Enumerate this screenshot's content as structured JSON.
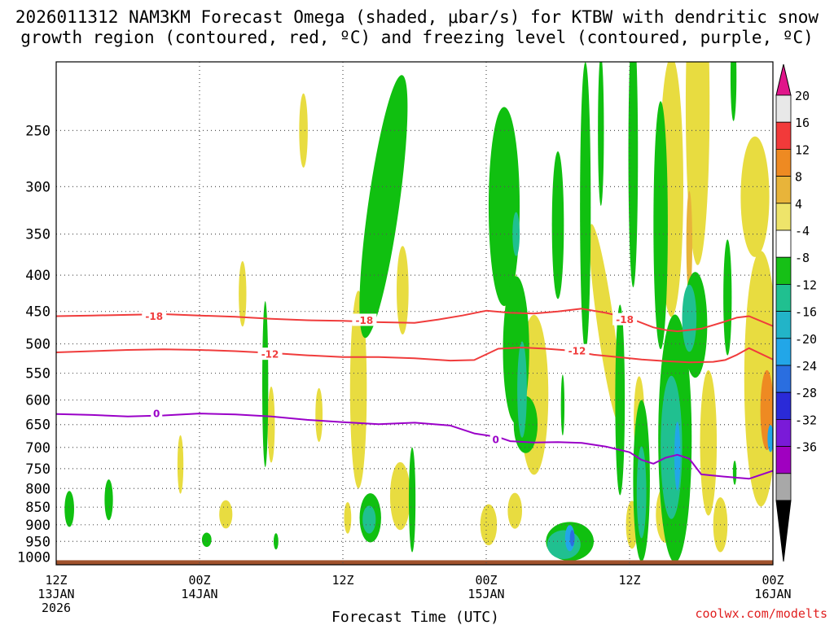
{
  "title_lines": [
    "2026011312 NAM3KM Forecast Omega (shaded, μbar/s) for KTBW with dendritic snow",
    "growth region (contoured, red, ºC) and freezing level (contoured, purple, ºC)"
  ],
  "source": "coolwx.com/modelts",
  "colors": {
    "red": "#f03c3c",
    "purple": "#9a00c8",
    "ground": "#a0522d",
    "dotgrid": "#555555",
    "source": "#e02020",
    "yellow": "#e8dc40",
    "orange": "#ee8a22",
    "green": "#10c010",
    "teal": "#20c090",
    "lightblue": "#22a6e8",
    "blue": "#2a6ee0"
  },
  "chart_data": {
    "type": "heatmap",
    "title": "2026011312 NAM3KM Forecast Omega (shaded, μbar/s) for KTBW with dendritic snow growth region (contoured, red, ºC) and freezing level (contoured, purple, ºC)",
    "xlabel": "Forecast Time (UTC)",
    "ylabel": "",
    "x_hours": [
      0,
      60
    ],
    "x_ticks": [
      {
        "h": 0,
        "lines": [
          "12Z",
          "13JAN",
          "2026"
        ]
      },
      {
        "h": 12,
        "lines": [
          "00Z",
          "14JAN"
        ]
      },
      {
        "h": 24,
        "lines": [
          "12Z"
        ]
      },
      {
        "h": 36,
        "lines": [
          "00Z",
          "15JAN"
        ]
      },
      {
        "h": 48,
        "lines": [
          "12Z"
        ]
      },
      {
        "h": 60,
        "lines": [
          "00Z",
          "16JAN"
        ]
      }
    ],
    "y_label_levels": [
      250,
      300,
      350,
      400,
      450,
      500,
      550,
      600,
      650,
      700,
      750,
      800,
      850,
      900,
      950,
      1000
    ],
    "y_grid_levels": [
      250,
      300,
      350,
      400,
      450,
      500,
      550,
      600,
      650,
      700,
      750,
      800,
      850,
      900,
      950
    ],
    "y_range_hpa": [
      1025,
      200
    ],
    "grid": "dotted",
    "colorbar": {
      "labels": [
        "20",
        "16",
        "12",
        "8",
        "4",
        "-4",
        "-8",
        "-12",
        "-16",
        "-20",
        "-24",
        "-28",
        "-32",
        "-36"
      ],
      "segments": [
        "#e8e8e8",
        "#f23a3a",
        "#ee8a22",
        "#e8b43a",
        "#eee46a",
        "#ffffff",
        "#16c016",
        "#20c090",
        "#22b4c8",
        "#22a6e8",
        "#2a6ee0",
        "#2a2ad8",
        "#7a1ad8",
        "#a000c0",
        "#a8a8a8"
      ],
      "top_arrow": "#e0158a",
      "bottom_arrow": "#000000"
    },
    "contours": [
      {
        "name": "-18",
        "color": "#f03c3c",
        "points": [
          [
            0,
            457
          ],
          [
            3,
            456
          ],
          [
            6,
            455
          ],
          [
            9,
            454
          ],
          [
            12,
            456
          ],
          [
            15,
            458
          ],
          [
            18,
            461
          ],
          [
            21,
            463
          ],
          [
            24,
            464
          ],
          [
            27,
            466
          ],
          [
            30,
            467
          ],
          [
            32,
            462
          ],
          [
            34,
            456
          ],
          [
            36,
            449
          ],
          [
            38,
            452
          ],
          [
            40,
            453
          ],
          [
            42,
            450
          ],
          [
            44,
            446
          ],
          [
            46,
            452
          ],
          [
            48,
            460
          ],
          [
            50,
            474
          ],
          [
            51,
            478
          ],
          [
            52,
            480
          ],
          [
            54,
            476
          ],
          [
            56,
            465
          ],
          [
            57,
            459
          ],
          [
            58,
            457
          ],
          [
            60,
            472
          ]
        ],
        "labels": [
          [
            8.2,
            457
          ],
          [
            25.8,
            463
          ],
          [
            47.6,
            462
          ]
        ]
      },
      {
        "name": "-12",
        "color": "#f03c3c",
        "points": [
          [
            0,
            514
          ],
          [
            3,
            512
          ],
          [
            6,
            510
          ],
          [
            9,
            509
          ],
          [
            12,
            510
          ],
          [
            15,
            512
          ],
          [
            18,
            515
          ],
          [
            21,
            519
          ],
          [
            24,
            522
          ],
          [
            27,
            522
          ],
          [
            30,
            524
          ],
          [
            33,
            528
          ],
          [
            35,
            527
          ],
          [
            37,
            508
          ],
          [
            39,
            506
          ],
          [
            41,
            508
          ],
          [
            43,
            511
          ],
          [
            45,
            518
          ],
          [
            47,
            522
          ],
          [
            49,
            526
          ],
          [
            51,
            529
          ],
          [
            53,
            531
          ],
          [
            55,
            530
          ],
          [
            56,
            527
          ],
          [
            57,
            518
          ],
          [
            58,
            507
          ],
          [
            60,
            526
          ]
        ],
        "labels": [
          [
            17.9,
            517
          ],
          [
            43.6,
            511
          ]
        ]
      },
      {
        "name": "0",
        "color": "#9a00c8",
        "points": [
          [
            0,
            628
          ],
          [
            3,
            630
          ],
          [
            6,
            633
          ],
          [
            9,
            631
          ],
          [
            12,
            627
          ],
          [
            15,
            629
          ],
          [
            18,
            633
          ],
          [
            21,
            640
          ],
          [
            24,
            645
          ],
          [
            27,
            649
          ],
          [
            30,
            646
          ],
          [
            33,
            652
          ],
          [
            35,
            669
          ],
          [
            37,
            677
          ],
          [
            38,
            686
          ],
          [
            40,
            689
          ],
          [
            42,
            688
          ],
          [
            44,
            690
          ],
          [
            46,
            698
          ],
          [
            48,
            711
          ],
          [
            49,
            729
          ],
          [
            50,
            738
          ],
          [
            51,
            724
          ],
          [
            52,
            717
          ],
          [
            53,
            726
          ],
          [
            54,
            764
          ],
          [
            56,
            770
          ],
          [
            58,
            775
          ],
          [
            60,
            755
          ]
        ],
        "labels": [
          [
            8.4,
            627
          ],
          [
            36.8,
            682
          ]
        ]
      }
    ],
    "shading": [
      {
        "value": 6,
        "x": 15.6,
        "p": 425,
        "rx": 0.32,
        "rp": 45,
        "rot": 0
      },
      {
        "value": 6,
        "x": 20.7,
        "p": 250,
        "rx": 0.36,
        "rp": 30,
        "rot": 0
      },
      {
        "value": 6,
        "x": 18.0,
        "p": 650,
        "rx": 0.3,
        "rp": 80,
        "rot": 0
      },
      {
        "value": 6,
        "x": 10.4,
        "p": 740,
        "rx": 0.25,
        "rp": 70,
        "rot": 0
      },
      {
        "value": 6,
        "x": 14.2,
        "p": 870,
        "rx": 0.55,
        "rp": 40,
        "rot": 0
      },
      {
        "value": 6,
        "x": 25.3,
        "p": 580,
        "rx": 0.7,
        "rp": 180,
        "rot": 0
      },
      {
        "value": 6,
        "x": 28.8,
        "p": 820,
        "rx": 0.85,
        "rp": 90,
        "rot": 0
      },
      {
        "value": 6,
        "x": 29.0,
        "p": 420,
        "rx": 0.5,
        "rp": 60,
        "rot": 0
      },
      {
        "value": 6,
        "x": 38.2,
        "p": 500,
        "rx": 0.7,
        "rp": 120,
        "rot": 0
      },
      {
        "value": 6,
        "x": 40.0,
        "p": 590,
        "rx": 1.2,
        "rp": 150,
        "rot": 0
      },
      {
        "value": 6,
        "x": 38.4,
        "p": 860,
        "rx": 0.6,
        "rp": 50,
        "rot": 0
      },
      {
        "value": 6,
        "x": 36.2,
        "p": 900,
        "rx": 0.7,
        "rp": 60,
        "rot": 0
      },
      {
        "value": 6,
        "x": 46.0,
        "p": 470,
        "rx": 0.7,
        "rp": 150,
        "rot": -8
      },
      {
        "value": 6,
        "x": 51.5,
        "p": 300,
        "rx": 1.0,
        "rp": 120,
        "rot": 0
      },
      {
        "value": 6,
        "x": 53.7,
        "p": 230,
        "rx": 1.0,
        "rp": 110,
        "rot": 0
      },
      {
        "value": 6,
        "x": 58.5,
        "p": 310,
        "rx": 1.2,
        "rp": 60,
        "rot": 0
      },
      {
        "value": 6,
        "x": 59.0,
        "p": 560,
        "rx": 1.4,
        "rp": 220,
        "rot": 0
      },
      {
        "value": 6,
        "x": 54.6,
        "p": 690,
        "rx": 0.7,
        "rp": 160,
        "rot": 0
      },
      {
        "value": 6,
        "x": 55.6,
        "p": 900,
        "rx": 0.6,
        "rp": 80,
        "rot": 0
      },
      {
        "value": 6,
        "x": 51.0,
        "p": 870,
        "rx": 0.8,
        "rp": 80,
        "rot": 0
      },
      {
        "value": 6,
        "x": 48.8,
        "p": 640,
        "rx": 0.45,
        "rp": 90,
        "rot": 0
      },
      {
        "value": 6,
        "x": 48.2,
        "p": 900,
        "rx": 0.5,
        "rp": 70,
        "rot": 0
      },
      {
        "value": 6,
        "x": 22.0,
        "p": 630,
        "rx": 0.3,
        "rp": 55,
        "rot": 0
      },
      {
        "value": 6,
        "x": 24.4,
        "p": 880,
        "rx": 0.3,
        "rp": 45,
        "rot": 0
      },
      {
        "value": 14,
        "x": 59.5,
        "p": 620,
        "rx": 0.55,
        "rp": 80,
        "rot": 0
      },
      {
        "value": 10,
        "x": 53.0,
        "p": 360,
        "rx": 0.25,
        "rp": 60,
        "rot": 0
      },
      {
        "value": -6,
        "x": 17.5,
        "p": 570,
        "rx": 0.25,
        "rp": 150,
        "rot": 0
      },
      {
        "value": -6,
        "x": 1.1,
        "p": 855,
        "rx": 0.4,
        "rp": 50,
        "rot": 0
      },
      {
        "value": -6,
        "x": 4.4,
        "p": 830,
        "rx": 0.35,
        "rp": 55,
        "rot": 0
      },
      {
        "value": -6,
        "x": 12.6,
        "p": 945,
        "rx": 0.4,
        "rp": 22,
        "rot": 0
      },
      {
        "value": -6,
        "x": 27.4,
        "p": 320,
        "rx": 1.3,
        "rp": 130,
        "rot": 8
      },
      {
        "value": -6,
        "x": 26.3,
        "p": 880,
        "rx": 0.9,
        "rp": 70,
        "rot": 0
      },
      {
        "value": -6,
        "x": 29.8,
        "p": 830,
        "rx": 0.28,
        "rp": 140,
        "rot": 0
      },
      {
        "value": -6,
        "x": 37.5,
        "p": 320,
        "rx": 1.3,
        "rp": 100,
        "rot": 0
      },
      {
        "value": -6,
        "x": 38.5,
        "p": 510,
        "rx": 1.1,
        "rp": 120,
        "rot": 0
      },
      {
        "value": -6,
        "x": 39.3,
        "p": 650,
        "rx": 1.0,
        "rp": 60,
        "rot": 0
      },
      {
        "value": -6,
        "x": 42.0,
        "p": 340,
        "rx": 0.5,
        "rp": 80,
        "rot": 0
      },
      {
        "value": -6,
        "x": 44.3,
        "p": 320,
        "rx": 0.45,
        "rp": 140,
        "rot": 0
      },
      {
        "value": -6,
        "x": 45.6,
        "p": 250,
        "rx": 0.25,
        "rp": 60,
        "rot": 0
      },
      {
        "value": -6,
        "x": 47.2,
        "p": 600,
        "rx": 0.4,
        "rp": 180,
        "rot": 0
      },
      {
        "value": -6,
        "x": 48.3,
        "p": 270,
        "rx": 0.4,
        "rp": 110,
        "rot": 0
      },
      {
        "value": -6,
        "x": 49.0,
        "p": 780,
        "rx": 0.7,
        "rp": 200,
        "rot": 0
      },
      {
        "value": -6,
        "x": 51.8,
        "p": 680,
        "rx": 1.4,
        "rp": 260,
        "rot": 0
      },
      {
        "value": -6,
        "x": 53.5,
        "p": 470,
        "rx": 1.0,
        "rp": 80,
        "rot": 0
      },
      {
        "value": -6,
        "x": 50.6,
        "p": 340,
        "rx": 0.6,
        "rp": 130,
        "rot": 0
      },
      {
        "value": -6,
        "x": 56.2,
        "p": 430,
        "rx": 0.35,
        "rp": 80,
        "rot": 0
      },
      {
        "value": -6,
        "x": 43.0,
        "p": 950,
        "rx": 2.0,
        "rp": 60,
        "rot": 0
      },
      {
        "value": -6,
        "x": 42.4,
        "p": 610,
        "rx": 0.15,
        "rp": 60,
        "rot": 0
      },
      {
        "value": -6,
        "x": 56.8,
        "p": 760,
        "rx": 0.15,
        "rp": 30,
        "rot": 0
      },
      {
        "value": -6,
        "x": 56.7,
        "p": 210,
        "rx": 0.25,
        "rp": 30,
        "rot": 0
      },
      {
        "value": -6,
        "x": 18.4,
        "p": 950,
        "rx": 0.2,
        "rp": 25,
        "rot": 0
      },
      {
        "value": -10,
        "x": 26.2,
        "p": 885,
        "rx": 0.55,
        "rp": 40,
        "rot": 0
      },
      {
        "value": -10,
        "x": 39.0,
        "p": 580,
        "rx": 0.4,
        "rp": 90,
        "rot": 0
      },
      {
        "value": -10,
        "x": 49.0,
        "p": 810,
        "rx": 0.4,
        "rp": 120,
        "rot": 0
      },
      {
        "value": -10,
        "x": 51.5,
        "p": 700,
        "rx": 0.9,
        "rp": 160,
        "rot": 0
      },
      {
        "value": -10,
        "x": 53.0,
        "p": 460,
        "rx": 0.6,
        "rp": 50,
        "rot": 0
      },
      {
        "value": -10,
        "x": 42.5,
        "p": 960,
        "rx": 1.4,
        "rp": 45,
        "rot": 0
      },
      {
        "value": -10,
        "x": 38.5,
        "p": 350,
        "rx": 0.3,
        "rp": 25,
        "rot": 0
      },
      {
        "value": -14,
        "x": 43.0,
        "p": 940,
        "rx": 0.4,
        "rp": 40,
        "rot": 0
      },
      {
        "value": -14,
        "x": 52.0,
        "p": 720,
        "rx": 0.25,
        "rp": 80,
        "rot": 0
      },
      {
        "value": -14,
        "x": 59.8,
        "p": 680,
        "rx": 0.25,
        "rp": 30,
        "rot": 0
      },
      {
        "value": -18,
        "x": 43.2,
        "p": 940,
        "rx": 0.2,
        "rp": 25,
        "rot": 0
      }
    ]
  }
}
